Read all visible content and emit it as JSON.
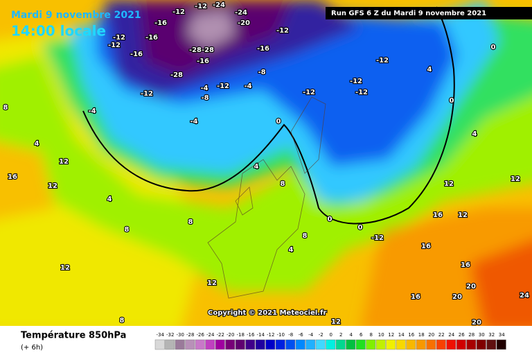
{
  "header": {
    "title": "Mardi 9 novembre 2021",
    "subtitle": "14:00 locale",
    "run": "Run GFS 6 Z du Mardi 9 novembre 2021",
    "copyright": "Copyright © 2021 Meteociel.fr"
  },
  "footer": {
    "title": "Température 850hPa",
    "lead": "(+ 6h)"
  },
  "contour_labels": [
    -12,
    -16,
    -12,
    -24,
    -24,
    -20,
    -16,
    -12,
    -12,
    -16,
    -28,
    -28,
    -16,
    -28,
    -12,
    -4,
    -12,
    -8,
    -4,
    -8,
    -16,
    -12,
    -12,
    -12,
    -12,
    -12,
    -4,
    -4,
    0,
    0,
    4,
    0,
    4,
    8,
    4,
    12,
    16,
    12,
    4,
    8,
    8,
    8,
    4,
    12,
    12,
    16,
    12,
    16,
    16,
    20,
    20,
    16,
    12,
    12,
    8,
    12,
    0,
    0,
    -12,
    24,
    20,
    8,
    4
  ],
  "legend": {
    "values": [
      -34,
      -32,
      -30,
      -28,
      -26,
      -24,
      -22,
      -20,
      -18,
      -16,
      -14,
      -12,
      -10,
      -8,
      -6,
      -4,
      -2,
      0,
      2,
      4,
      6,
      8,
      10,
      12,
      14,
      16,
      18,
      20,
      22,
      24,
      26,
      28,
      30,
      32,
      34
    ],
    "colors": [
      "#d8d8d8",
      "#b4b4b4",
      "#9a7a9a",
      "#b890b8",
      "#c878c8",
      "#c040c0",
      "#a000a0",
      "#780078",
      "#600070",
      "#40008a",
      "#2000a0",
      "#0000c8",
      "#0020e0",
      "#0050f0",
      "#0088ff",
      "#20b0ff",
      "#40d8ff",
      "#00f0e0",
      "#00d890",
      "#00c040",
      "#20e020",
      "#80f000",
      "#c0f000",
      "#f0f000",
      "#f8d800",
      "#f8b800",
      "#f89800",
      "#f87000",
      "#f84000",
      "#f01000",
      "#d00000",
      "#a80000",
      "#800000",
      "#601010",
      "#200000"
    ]
  }
}
